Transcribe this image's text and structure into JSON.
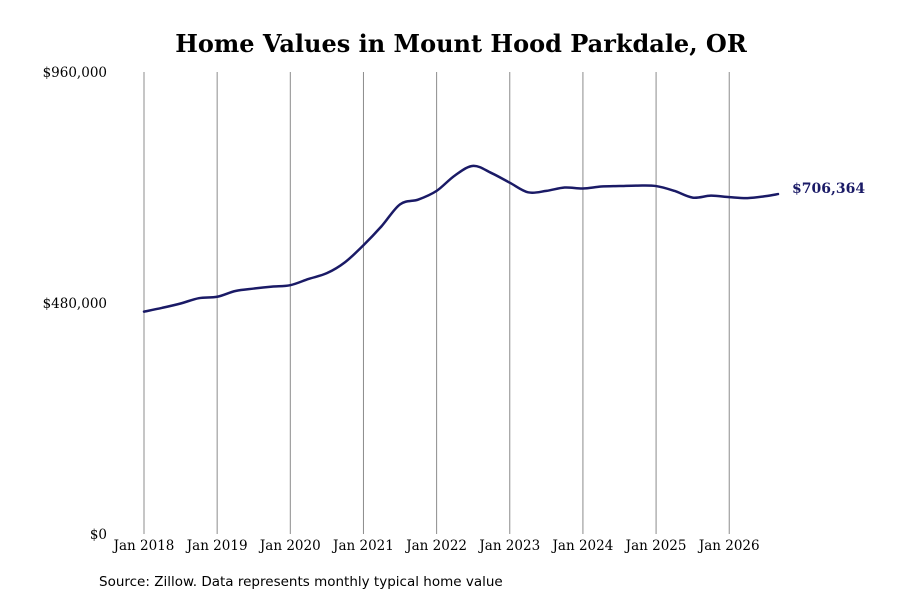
{
  "colors": {
    "line": "#1a1a66",
    "gridline": "#8c8c8c",
    "background": "#ffffff",
    "text": "#000000"
  },
  "chart_data": {
    "type": "line",
    "title": "Home Values in Mount Hood Parkdale, OR",
    "xlabel": "",
    "ylabel": "",
    "ylim": [
      0,
      960000
    ],
    "xlim": [
      "2018-01",
      "2026-09"
    ],
    "y_tick_values": [
      0,
      480000,
      960000
    ],
    "y_tick_labels": [
      "$0",
      "$480,000",
      "$960,000"
    ],
    "x_tick_values": [
      "2018-01",
      "2019-01",
      "2020-01",
      "2021-01",
      "2022-01",
      "2023-01",
      "2024-01",
      "2025-01",
      "2026-01"
    ],
    "x_tick_labels": [
      "Jan 2018",
      "Jan 2019",
      "Jan 2020",
      "Jan 2021",
      "Jan 2022",
      "Jan 2023",
      "Jan 2024",
      "Jan 2025",
      "Jan 2026"
    ],
    "grid": {
      "vertical": true,
      "horizontal": false
    },
    "end_label": "$706,364",
    "source_note": "Source: Zillow. Data represents monthly typical home value",
    "series": [
      {
        "x": [
          "2018-01",
          "2018-04",
          "2018-07",
          "2018-10",
          "2019-01",
          "2019-04",
          "2019-07",
          "2019-10",
          "2020-01",
          "2020-04",
          "2020-07",
          "2020-10",
          "2021-01",
          "2021-04",
          "2021-07",
          "2021-10",
          "2022-01",
          "2022-04",
          "2022-07",
          "2022-10",
          "2023-01",
          "2023-04",
          "2023-07",
          "2023-10",
          "2024-01",
          "2024-04",
          "2024-07",
          "2024-10",
          "2025-01",
          "2025-04",
          "2025-07",
          "2025-10",
          "2026-01",
          "2026-04",
          "2026-07",
          "2026-09"
        ],
        "values": [
          462000,
          470000,
          479000,
          490000,
          493000,
          505000,
          510000,
          514000,
          517000,
          530000,
          542000,
          565000,
          600000,
          640000,
          685000,
          695000,
          713000,
          745000,
          765000,
          750000,
          730000,
          710000,
          713000,
          720000,
          718000,
          722000,
          723000,
          724000,
          723000,
          713000,
          699000,
          703000,
          700000,
          698000,
          702000,
          706364
        ]
      }
    ]
  }
}
